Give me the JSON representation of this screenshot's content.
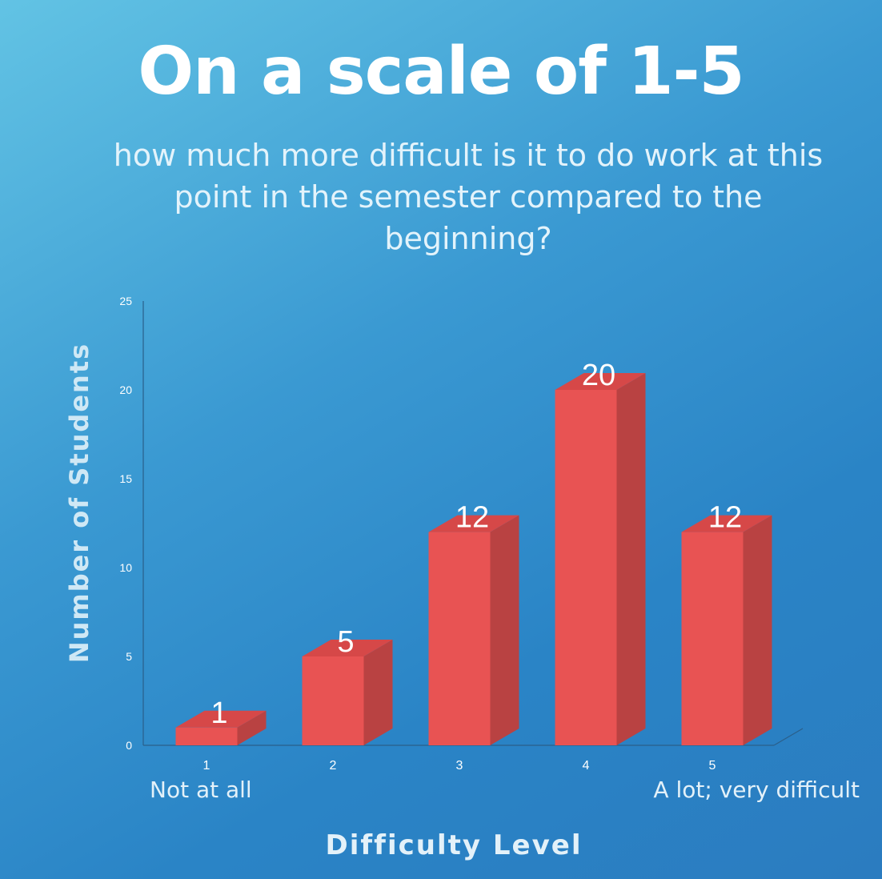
{
  "title": "On a scale of 1-5",
  "subtitle": "how much more difficult is it to do work at this point in the semester compared to the beginning?",
  "colors": {
    "bar_front": "#e85353",
    "bar_side": "#b94242",
    "bar_top": "#d64848",
    "background_top": "#62c3e4",
    "background_bottom": "#2b7cc0"
  },
  "chart_data": {
    "type": "bar",
    "title": "On a scale of 1-5",
    "subtitle": "how much more difficult is it to do work at this point in the semester compared to the beginning?",
    "xlabel": "Difficulty Level",
    "ylabel": "Number of Students",
    "categories": [
      "1",
      "2",
      "3",
      "4",
      "5"
    ],
    "values": [
      1,
      5,
      12,
      20,
      12
    ],
    "data_labels": [
      "1",
      "5",
      "12",
      "20",
      "12"
    ],
    "ylim": [
      0,
      25
    ],
    "yticks": [
      0,
      5,
      10,
      15,
      20,
      25
    ],
    "grid": false,
    "style": "3d",
    "category_annotations": {
      "first": "Not at all",
      "last": "A lot; very difficult"
    }
  }
}
